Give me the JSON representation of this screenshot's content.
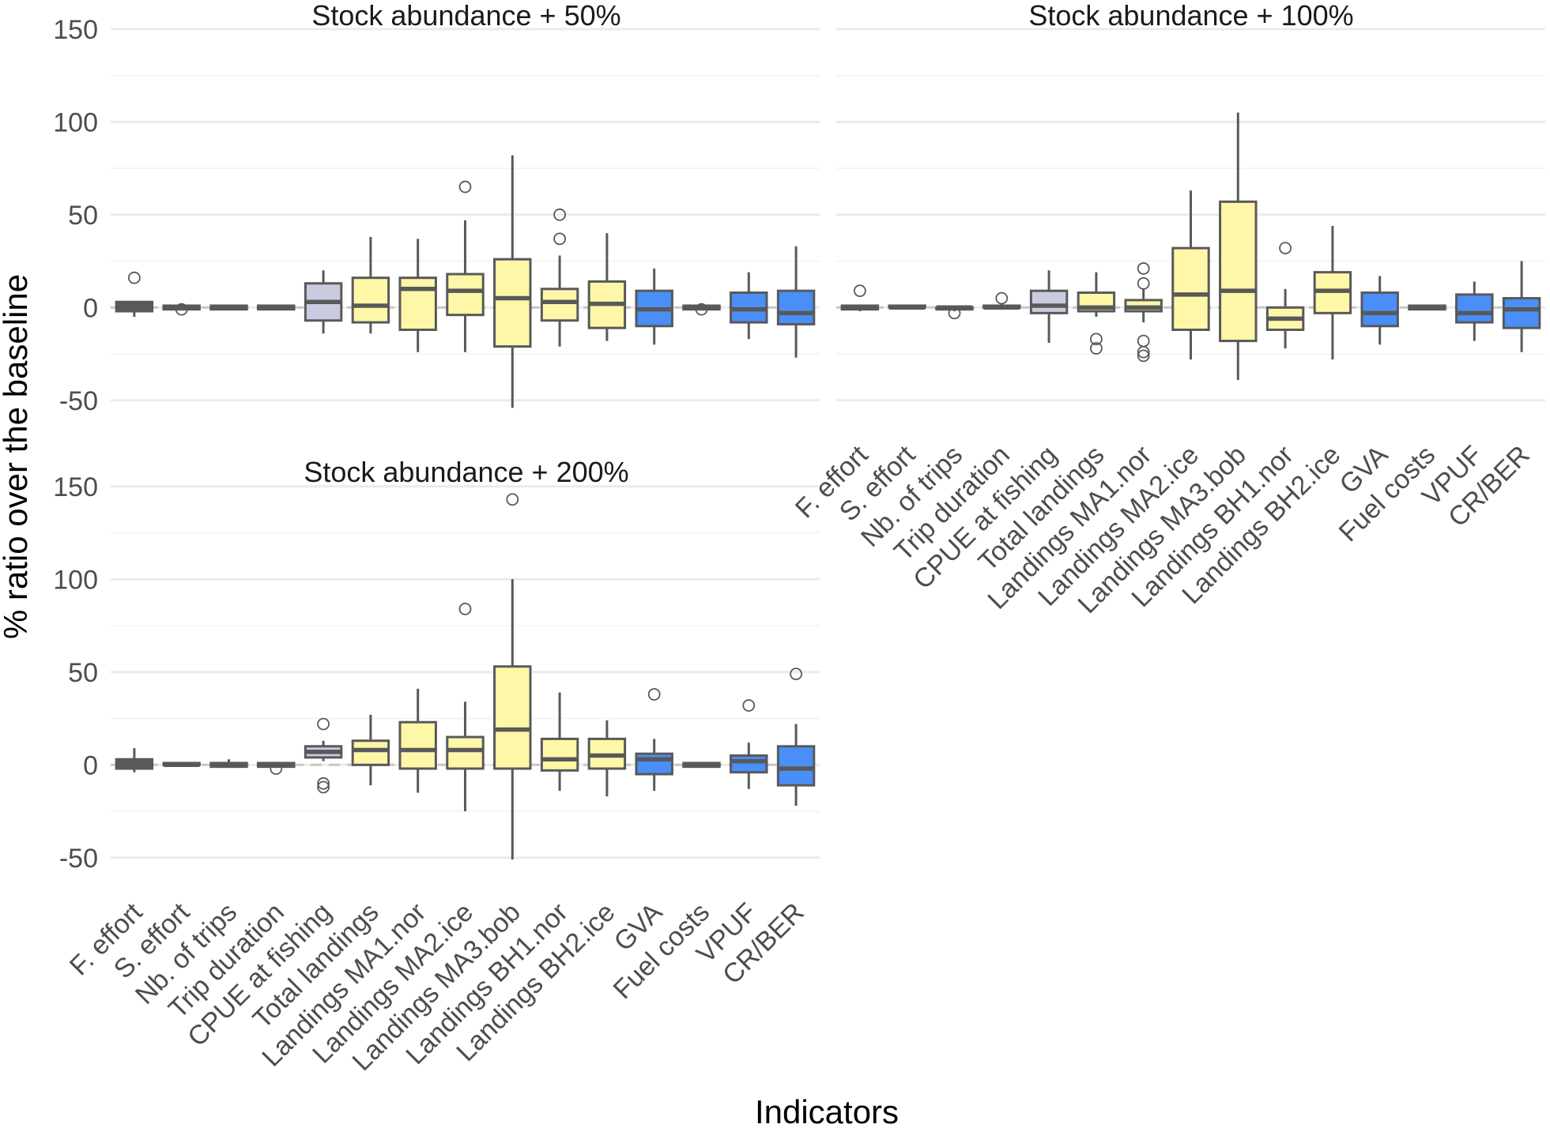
{
  "chart_data": {
    "type": "boxplot",
    "ylabel": "% ratio over the baseline",
    "xlabel": "Indicators",
    "ylim": [
      -62,
      158
    ],
    "yticks": [
      -50,
      0,
      50,
      100,
      150
    ],
    "categories": [
      "F. effort",
      "S. effort",
      "Nb. of trips",
      "Trip duration",
      "CPUE at fishing",
      "Total landings",
      "Landings MA1.nor",
      "Landings MA2.ice",
      "Landings MA3.bob",
      "Landings BH1.nor",
      "Landings BH2.ice",
      "GVA",
      "Fuel costs",
      "VPUF",
      "CR/BER"
    ],
    "category_groups": [
      "effort",
      "effort",
      "effort",
      "effort",
      "cpue",
      "landings",
      "landings",
      "landings",
      "landings",
      "landings",
      "landings",
      "economic",
      "effort",
      "economic",
      "economic"
    ],
    "colors": {
      "effort": "#595959",
      "cpue": "#c9cbe0",
      "landings": "#fff7a8",
      "economic": "#4a8ef7",
      "outline": "#595959"
    },
    "panels": [
      {
        "title": "Stock abundance + 50%",
        "boxes": [
          {
            "low": -5,
            "q1": -2,
            "median": 0,
            "q3": 3,
            "high": 3,
            "outliers": [
              16
            ]
          },
          {
            "low": -1,
            "q1": -1,
            "median": 0,
            "q3": 1,
            "high": 1,
            "outliers": [
              -1
            ]
          },
          {
            "low": -1,
            "q1": -1,
            "median": 0,
            "q3": 1,
            "high": 1,
            "outliers": []
          },
          {
            "low": -1,
            "q1": -1,
            "median": 0,
            "q3": 1,
            "high": 1,
            "outliers": []
          },
          {
            "low": -14,
            "q1": -7,
            "median": 3,
            "q3": 13,
            "high": 20,
            "outliers": []
          },
          {
            "low": -14,
            "q1": -8,
            "median": 1,
            "q3": 16,
            "high": 38,
            "outliers": []
          },
          {
            "low": -24,
            "q1": -12,
            "median": 10,
            "q3": 16,
            "high": 37,
            "outliers": []
          },
          {
            "low": -24,
            "q1": -4,
            "median": 9,
            "q3": 18,
            "high": 47,
            "outliers": [
              65
            ]
          },
          {
            "low": -54,
            "q1": -21,
            "median": 5,
            "q3": 26,
            "high": 82,
            "outliers": []
          },
          {
            "low": -21,
            "q1": -7,
            "median": 3,
            "q3": 10,
            "high": 28,
            "outliers": [
              37,
              50
            ]
          },
          {
            "low": -18,
            "q1": -11,
            "median": 2,
            "q3": 14,
            "high": 40,
            "outliers": []
          },
          {
            "low": -20,
            "q1": -10,
            "median": -1,
            "q3": 9,
            "high": 21,
            "outliers": []
          },
          {
            "low": -1,
            "q1": -1,
            "median": 0,
            "q3": 1,
            "high": 1,
            "outliers": [
              -1
            ]
          },
          {
            "low": -17,
            "q1": -8,
            "median": -1,
            "q3": 8,
            "high": 19,
            "outliers": []
          },
          {
            "low": -27,
            "q1": -9,
            "median": -3,
            "q3": 9,
            "high": 33,
            "outliers": []
          }
        ]
      },
      {
        "title": "Stock abundance + 100%",
        "boxes": [
          {
            "low": -2,
            "q1": -1,
            "median": 0,
            "q3": 1,
            "high": 1,
            "outliers": [
              9
            ]
          },
          {
            "low": -1,
            "q1": 0,
            "median": 0,
            "q3": 1,
            "high": 1,
            "outliers": []
          },
          {
            "low": -2,
            "q1": -1,
            "median": 0,
            "q3": 0,
            "high": 0,
            "outliers": [
              -3
            ]
          },
          {
            "low": -1,
            "q1": 0,
            "median": 0,
            "q3": 1,
            "high": 2,
            "outliers": [
              5
            ]
          },
          {
            "low": -19,
            "q1": -3,
            "median": 1,
            "q3": 9,
            "high": 20,
            "outliers": []
          },
          {
            "low": -5,
            "q1": -2,
            "median": 0,
            "q3": 8,
            "high": 19,
            "outliers": [
              -17,
              -22
            ]
          },
          {
            "low": -8,
            "q1": -2,
            "median": 0,
            "q3": 4,
            "high": 10,
            "outliers": [
              13,
              21,
              -18,
              -24,
              -26
            ]
          },
          {
            "low": -28,
            "q1": -12,
            "median": 7,
            "q3": 32,
            "high": 63,
            "outliers": []
          },
          {
            "low": -39,
            "q1": -18,
            "median": 9,
            "q3": 57,
            "high": 105,
            "outliers": []
          },
          {
            "low": -22,
            "q1": -12,
            "median": -6,
            "q3": 0,
            "high": 10,
            "outliers": [
              32
            ]
          },
          {
            "low": -28,
            "q1": -3,
            "median": 9,
            "q3": 19,
            "high": 44,
            "outliers": []
          },
          {
            "low": -20,
            "q1": -10,
            "median": -3,
            "q3": 8,
            "high": 17,
            "outliers": []
          },
          {
            "low": -1,
            "q1": -1,
            "median": 0,
            "q3": 1,
            "high": 1,
            "outliers": []
          },
          {
            "low": -18,
            "q1": -8,
            "median": -3,
            "q3": 7,
            "high": 14,
            "outliers": []
          },
          {
            "low": -24,
            "q1": -11,
            "median": -1,
            "q3": 5,
            "high": 25,
            "outliers": []
          }
        ]
      },
      {
        "title": "Stock abundance + 200%",
        "boxes": [
          {
            "low": -4,
            "q1": -2,
            "median": 0,
            "q3": 3,
            "high": 9,
            "outliers": []
          },
          {
            "low": -1,
            "q1": 0,
            "median": 0,
            "q3": 1,
            "high": 1,
            "outliers": []
          },
          {
            "low": -1,
            "q1": -1,
            "median": 0,
            "q3": 1,
            "high": 3,
            "outliers": []
          },
          {
            "low": -1,
            "q1": -1,
            "median": 0,
            "q3": 1,
            "high": 1,
            "outliers": [
              -2
            ]
          },
          {
            "low": 2,
            "q1": 4,
            "median": 7,
            "q3": 10,
            "high": 13,
            "outliers": [
              22,
              -10,
              -12
            ]
          },
          {
            "low": -11,
            "q1": 0,
            "median": 8,
            "q3": 13,
            "high": 27,
            "outliers": []
          },
          {
            "low": -15,
            "q1": -2,
            "median": 8,
            "q3": 23,
            "high": 41,
            "outliers": []
          },
          {
            "low": -25,
            "q1": -2,
            "median": 8,
            "q3": 15,
            "high": 34,
            "outliers": [
              84
            ]
          },
          {
            "low": -51,
            "q1": -2,
            "median": 19,
            "q3": 53,
            "high": 100,
            "outliers": [
              143
            ]
          },
          {
            "low": -14,
            "q1": -3,
            "median": 3,
            "q3": 14,
            "high": 39,
            "outliers": []
          },
          {
            "low": -17,
            "q1": -2,
            "median": 5,
            "q3": 14,
            "high": 24,
            "outliers": []
          },
          {
            "low": -14,
            "q1": -5,
            "median": 3,
            "q3": 6,
            "high": 14,
            "outliers": [
              38
            ]
          },
          {
            "low": -1,
            "q1": -1,
            "median": 0,
            "q3": 1,
            "high": 1,
            "outliers": []
          },
          {
            "low": -13,
            "q1": -4,
            "median": 2,
            "q3": 5,
            "high": 12,
            "outliers": [
              32
            ]
          },
          {
            "low": -22,
            "q1": -11,
            "median": -2,
            "q3": 10,
            "high": 22,
            "outliers": [
              49
            ]
          }
        ]
      }
    ]
  }
}
